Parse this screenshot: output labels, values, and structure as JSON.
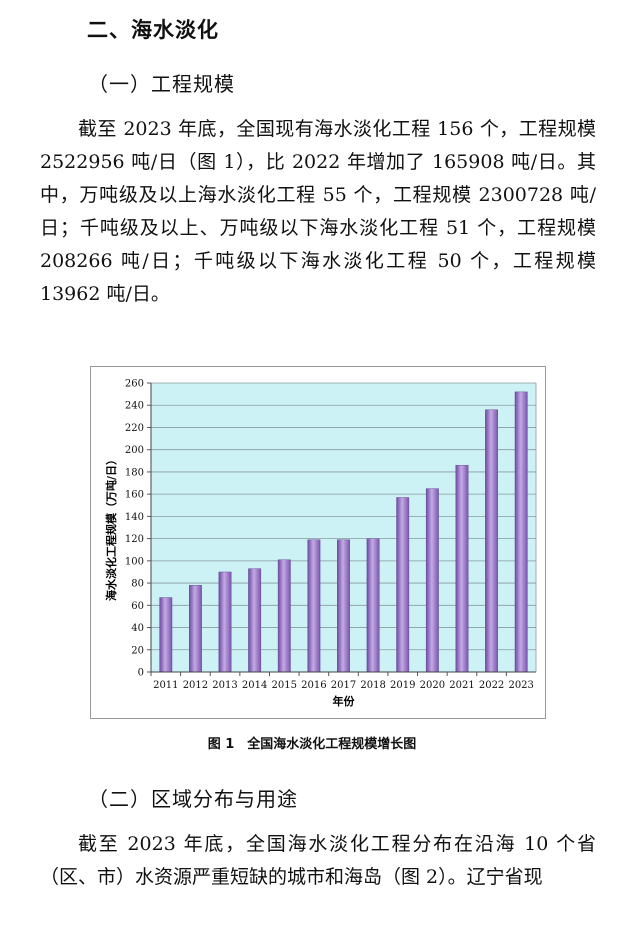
{
  "section": {
    "title": "二、海水淡化"
  },
  "sub1": {
    "title": "（一）工程规模"
  },
  "para1": "截至 2023 年底，全国现有海水淡化工程 156 个，工程规模 2522956 吨/日（图 1），比 2022 年增加了 165908 吨/日。其中，万吨级及以上海水淡化工程 55 个，工程规模 2300728 吨/日；千吨级及以上、万吨级以下海水淡化工程 51 个，工程规模 208266 吨/日；千吨级以下海水淡化工程 50 个，工程规模 13962 吨/日。",
  "figure1": {
    "caption": "图 1　全国海水淡化工程规模增长图"
  },
  "sub2": {
    "title": "（二）区域分布与用途"
  },
  "para2": "截至 2023 年底，全国海水淡化工程分布在沿海 10 个省（区、市）水资源严重短缺的城市和海岛（图 2）。辽宁省现",
  "chart_data": {
    "type": "bar",
    "categories": [
      "2011",
      "2012",
      "2013",
      "2014",
      "2015",
      "2016",
      "2017",
      "2018",
      "2019",
      "2020",
      "2021",
      "2022",
      "2023"
    ],
    "values": [
      67,
      78,
      90,
      93,
      101,
      119,
      119,
      120,
      157,
      165,
      186,
      236,
      252
    ],
    "xlabel": "年份",
    "ylabel": "海水淡化工程规模（万吨/日）",
    "ylim": [
      0,
      260
    ],
    "yticks": [
      0,
      20,
      40,
      60,
      80,
      100,
      120,
      140,
      160,
      180,
      200,
      220,
      240,
      260
    ],
    "grid": true,
    "colors": {
      "plot_bg": "#ccf2f6",
      "bar": "#9b79c4"
    }
  }
}
